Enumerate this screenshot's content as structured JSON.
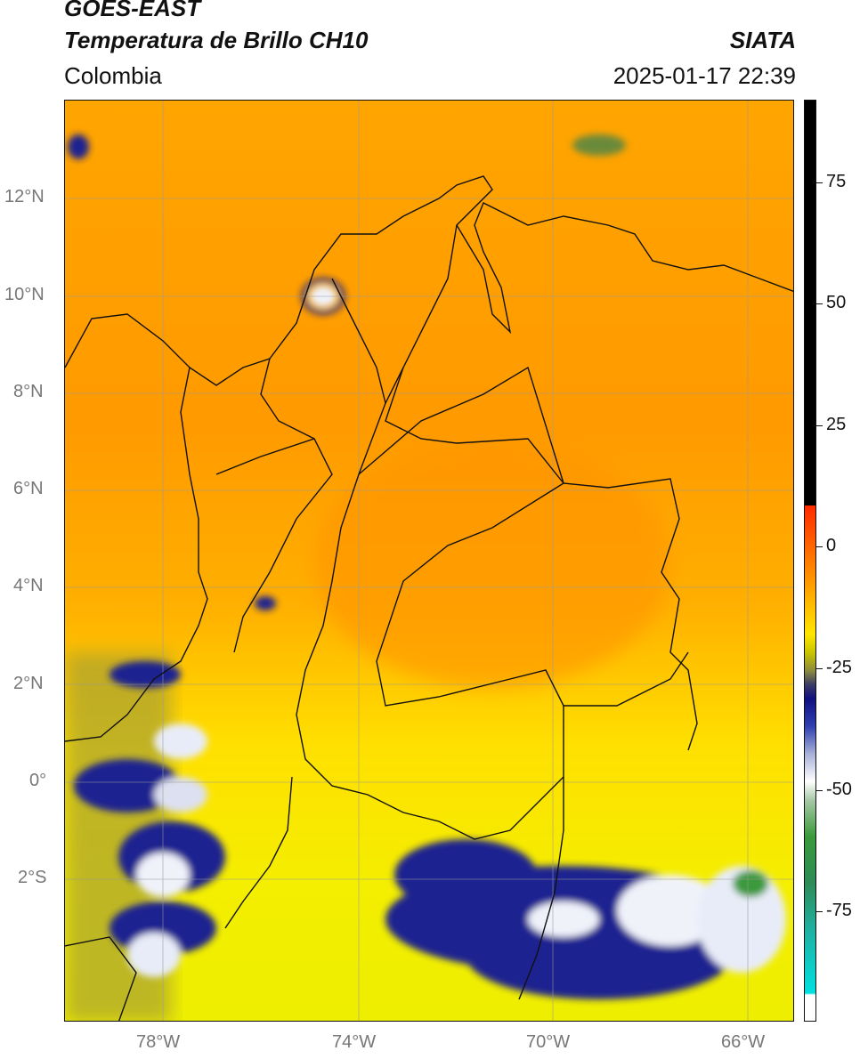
{
  "header": {
    "title_line1": "GOES-EAST",
    "title_line2": "Temperatura de Brillo CH10",
    "brand": "SIATA",
    "region": "Colombia",
    "datetime": "2025-01-17 22:39"
  },
  "axes": {
    "lat_labels": [
      "12°N",
      "10°N",
      "8°N",
      "6°N",
      "4°N",
      "2°N",
      "0°",
      "2°S"
    ],
    "lon_labels": [
      "78°W",
      "74°W",
      "70°W",
      "66°W"
    ]
  },
  "colorbar": {
    "labels": [
      "75",
      "50",
      "25",
      "0",
      "-25",
      "-50",
      "-75"
    ],
    "colors": {
      "warm_black": "#000000",
      "hot": "#ff2a00",
      "orange": "#ff9900",
      "yellow": "#ffee00",
      "olive": "#8a8a40",
      "navy": "#101080",
      "white": "#ffffff",
      "green": "#3a9a3a",
      "teal": "#20b0a0",
      "cyan": "#00e0e0"
    }
  }
}
